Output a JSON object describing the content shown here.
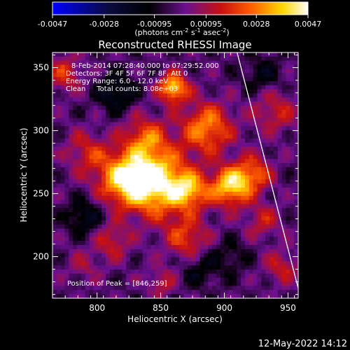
{
  "chart_data": {
    "type": "heatmap",
    "title": "Reconstructed RHESSI Image",
    "xlabel": "Heliocentric X (arcsec)",
    "ylabel": "Heliocentric Y (arcsec)",
    "xlim": [
      765,
      958
    ],
    "ylim": [
      167,
      362
    ],
    "x_ticks": [
      800,
      850,
      900,
      950
    ],
    "y_ticks": [
      200,
      250,
      300,
      350
    ],
    "colorbar": {
      "ticks": [
        "-0.0047",
        "-0.0028",
        "-0.00095",
        "0.00095",
        "0.0028",
        "0.0047"
      ],
      "unit_label": "(photons cm",
      "unit_sup1": "-2",
      "unit_mid": " s",
      "unit_sup2": "-1",
      "unit_mid2": " asec",
      "unit_sup3": "-2",
      "unit_end": ")",
      "range": [
        -0.0047,
        0.0047
      ],
      "colormap": "blue-black-purple-red-yellow-white"
    },
    "annotations": {
      "time": "8-Feb-2014 07:28:40.000 to 07:29:52.000",
      "detectors": "Detectors: 3F 4F 5F 6F 7F 8F, Att 0",
      "energy": "Energy Range: 6.0 - 12.0 keV",
      "clean": "Clean     Total counts: 8.08e+03",
      "peak": "Position of Peak = [846,259]"
    },
    "peak_position": [
      846,
      259
    ],
    "limb_line": [
      [
        910,
        362
      ],
      [
        958,
        175
      ]
    ],
    "blobs": [
      {
        "x": 846,
        "y": 259,
        "amp": 1.0,
        "sigma": 18
      },
      {
        "x": 820,
        "y": 262,
        "amp": 0.7,
        "sigma": 14
      },
      {
        "x": 873,
        "y": 252,
        "amp": 0.6,
        "sigma": 10
      },
      {
        "x": 905,
        "y": 256,
        "amp": 0.85,
        "sigma": 11
      },
      {
        "x": 923,
        "y": 266,
        "amp": 0.5,
        "sigma": 10
      },
      {
        "x": 886,
        "y": 302,
        "amp": 0.65,
        "sigma": 14
      },
      {
        "x": 860,
        "y": 334,
        "amp": 0.85,
        "sigma": 8
      },
      {
        "x": 838,
        "y": 294,
        "amp": 0.5,
        "sigma": 12
      },
      {
        "x": 792,
        "y": 283,
        "amp": 0.35,
        "sigma": 12
      },
      {
        "x": 870,
        "y": 215,
        "amp": 0.45,
        "sigma": 12
      },
      {
        "x": 812,
        "y": 212,
        "amp": 0.35,
        "sigma": 10
      },
      {
        "x": 940,
        "y": 315,
        "amp": 0.35,
        "sigma": 12
      },
      {
        "x": 930,
        "y": 228,
        "amp": 0.3,
        "sigma": 10
      },
      {
        "x": 775,
        "y": 345,
        "amp": 0.4,
        "sigma": 10
      },
      {
        "x": 945,
        "y": 192,
        "amp": 0.35,
        "sigma": 9
      },
      {
        "x": 790,
        "y": 193,
        "amp": 0.2,
        "sigma": 9
      },
      {
        "x": 850,
        "y": 180,
        "amp": 0.3,
        "sigma": 8
      },
      {
        "x": 815,
        "y": 330,
        "amp": -0.4,
        "sigma": 10
      },
      {
        "x": 790,
        "y": 232,
        "amp": -0.35,
        "sigma": 10
      },
      {
        "x": 930,
        "y": 345,
        "amp": -0.25,
        "sigma": 10
      },
      {
        "x": 880,
        "y": 190,
        "amp": -0.25,
        "sigma": 10
      },
      {
        "x": 905,
        "y": 200,
        "amp": -0.2,
        "sigma": 10
      }
    ]
  },
  "footer": {
    "timestamp": "12-May-2022 14:12"
  }
}
